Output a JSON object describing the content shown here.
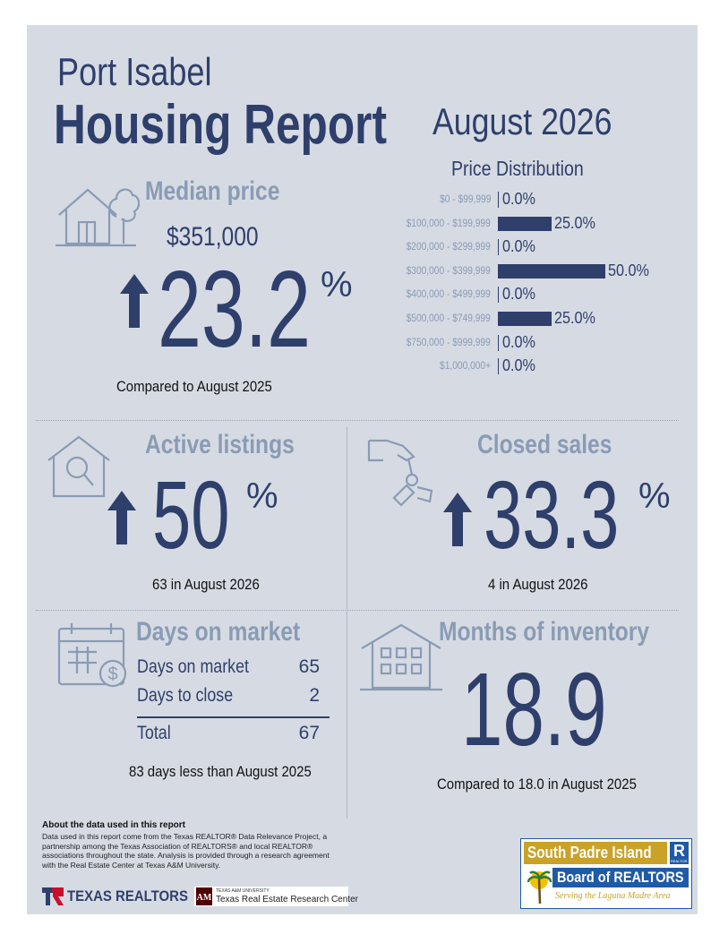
{
  "header": {
    "city": "Port Isabel",
    "report_title": "Housing Report",
    "period": "August 2026"
  },
  "median_price": {
    "title": "Median price",
    "value": "$351,000",
    "change": "23.2",
    "pct_sign": "%",
    "direction": "up",
    "comparison": "Compared to August 2025"
  },
  "price_distribution": {
    "title": "Price Distribution",
    "ranges": [
      {
        "label": "$0 - $99,999",
        "value": "0.0%",
        "share": 0.0
      },
      {
        "label": "$100,000 - $199,999",
        "value": "25.0%",
        "share": 25.0
      },
      {
        "label": "$200,000 - $299,999",
        "value": "0.0%",
        "share": 0.0
      },
      {
        "label": "$300,000 - $399,999",
        "value": "50.0%",
        "share": 50.0
      },
      {
        "label": "$400,000 - $499,999",
        "value": "0.0%",
        "share": 0.0
      },
      {
        "label": "$500,000 - $749,999",
        "value": "25.0%",
        "share": 25.0
      },
      {
        "label": "$750,000 - $999,999",
        "value": "0.0%",
        "share": 0.0
      },
      {
        "label": "$1,000,000+",
        "value": "0.0%",
        "share": 0.0
      }
    ]
  },
  "active_listings": {
    "title": "Active listings",
    "change": "50",
    "pct_sign": "%",
    "direction": "up",
    "caption": "63 in August 2026"
  },
  "closed_sales": {
    "title": "Closed sales",
    "change": "33.3",
    "pct_sign": "%",
    "direction": "up",
    "caption": "4 in August 2026"
  },
  "days_on_market": {
    "title": "Days on market",
    "rows": [
      {
        "label": "Days on market",
        "value": "65"
      },
      {
        "label": "Days to close",
        "value": "2"
      }
    ],
    "total_label": "Total",
    "total_value": "67",
    "caption": "83 days less than August 2025"
  },
  "months_inventory": {
    "title": "Months of inventory",
    "value": "18.9",
    "caption": "Compared to 18.0 in August 2025"
  },
  "about": {
    "title": "About the data used in this report",
    "text": "Data used in this report come from the Texas REALTOR® Data Relevance Project, a partnership among the Texas Association of REALTORS® and local REALTOR® associations throughout the state. Analysis is provided through a research agreement with the Real Estate Center at Texas A&M University."
  },
  "footer": {
    "texas_realtors": "TEXAS REALTORS",
    "tamu_small": "TEXAS A&M UNIVERSITY",
    "tamu_center": "Texas Real Estate Research Center",
    "board_line1": "South Padre Island",
    "board_line2": "Board of REALTORS",
    "board_tagline": "Serving the Laguna Madre Area",
    "r_logo": "R",
    "r_logo_small": "REALTOR"
  },
  "colors": {
    "navy": "#2f3f6c",
    "slate": "#8a9bb5",
    "panel": "#d6dbe3",
    "gold": "#c9a227",
    "board_blue": "#1f5aa6"
  }
}
